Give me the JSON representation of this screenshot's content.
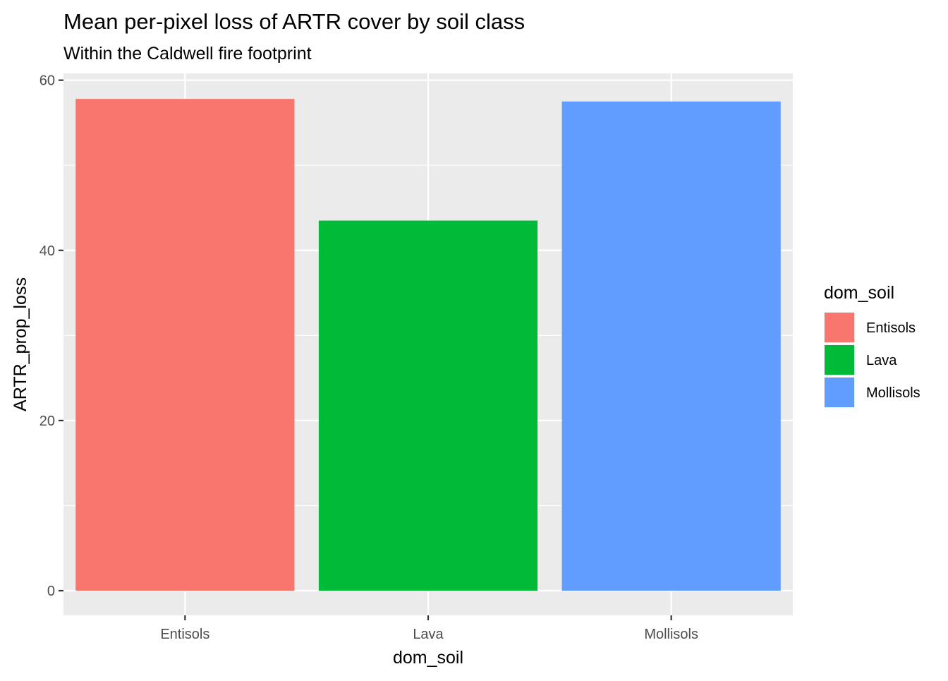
{
  "chart_data": {
    "type": "bar",
    "title": "Mean per-pixel loss of ARTR cover by soil class",
    "subtitle": "Within the Caldwell fire footprint",
    "xlabel": "dom_soil",
    "ylabel": "ARTR_prop_loss",
    "categories": [
      "Entisols",
      "Lava",
      "Mollisols"
    ],
    "values": [
      57.8,
      43.5,
      57.5
    ],
    "colors": [
      "#F8766D",
      "#00BA38",
      "#619CFF"
    ],
    "ylim": [
      -2.9,
      60.8
    ],
    "yticks": [
      0,
      20,
      40,
      60
    ],
    "grid": true,
    "panel_background": "#EBEBEB",
    "legend": {
      "title": "dom_soil",
      "position": "right",
      "entries": [
        "Entisols",
        "Lava",
        "Mollisols"
      ]
    }
  }
}
